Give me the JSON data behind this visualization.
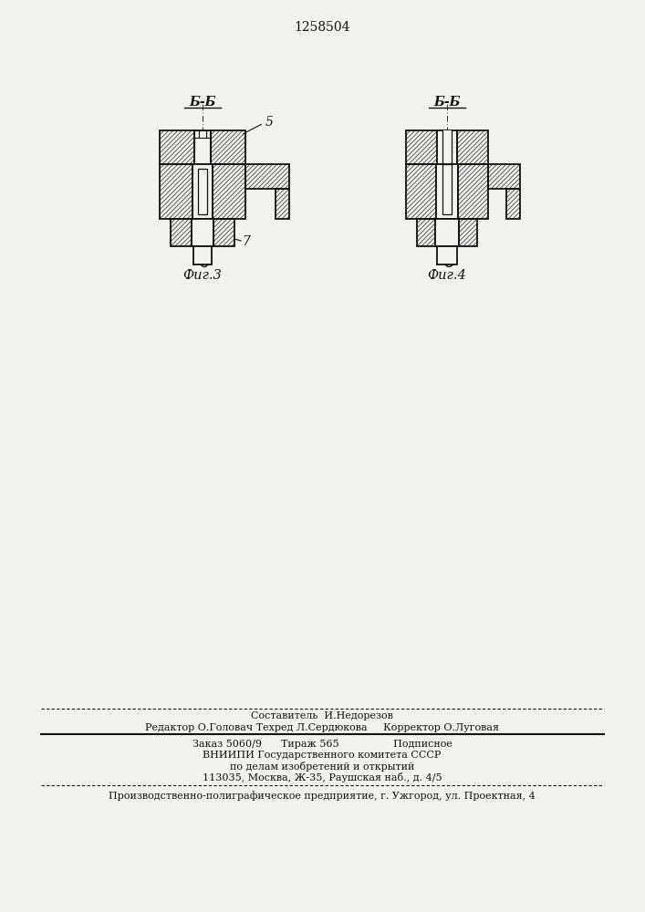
{
  "patent_number": "1258504",
  "fig3_label": "Фиг.3",
  "fig4_label": "Фиг.4",
  "section_label": "Б-Б",
  "part5_label": "5",
  "part7_label": "7",
  "footer_line1": "Составитель  И.Недорезов",
  "footer_line2": "Редактор О.Головач Техред Л.Сердюкова     Корректор О.Луговая",
  "footer_line3": "Заказ 5060/9      Тираж 565                 Подписное",
  "footer_line4": "ВНИИПИ Государственного комитета СССР",
  "footer_line5": "по делам изобретений и открытий",
  "footer_line6": "113035, Москва, Ж-35, Раушская наб., д. 4/5",
  "footer_line7": "Производственно-полиграфическое предприятие, г. Ужгород, ул. Проектная, 4",
  "bg_color": "#f2f2ee",
  "line_color": "#111111"
}
